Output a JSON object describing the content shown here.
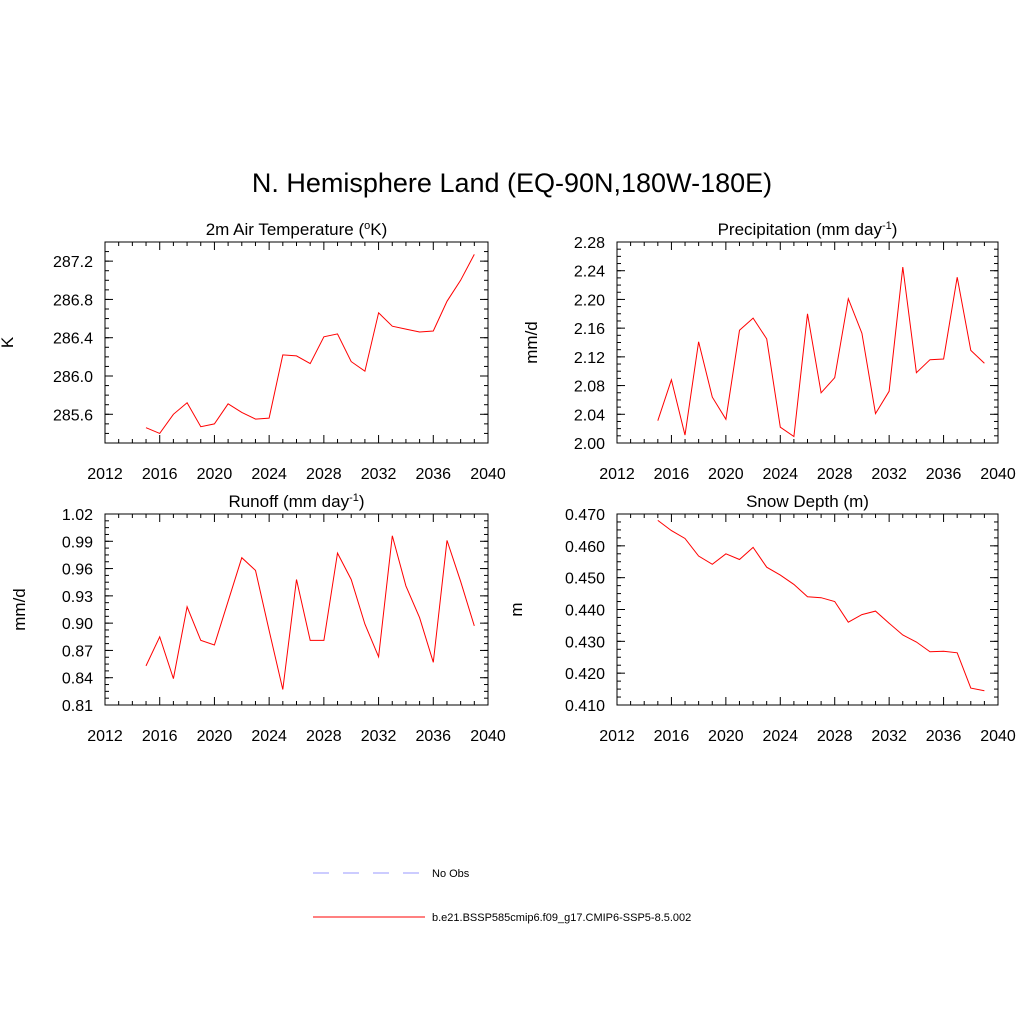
{
  "figure": {
    "title": "N. Hemisphere Land (EQ-90N,180W-180E)"
  },
  "colors": {
    "series": "#ff0000",
    "obs": "#9999ff",
    "axis": "#000000"
  },
  "chart_data": [
    {
      "type": "line",
      "title": "2m Air Temperature (",
      "title_sup": "o",
      "title_after": "K)",
      "ylabel": "K",
      "xlim": [
        2012,
        2040
      ],
      "ylim": [
        285.3,
        287.4
      ],
      "xticks": [
        2012,
        2016,
        2020,
        2024,
        2028,
        2032,
        2036,
        2040
      ],
      "xtick_labels": [
        "2012",
        "2016",
        "2020",
        "2024",
        "2028",
        "2032",
        "2036",
        "2040"
      ],
      "yticks": [
        285.6,
        286.0,
        286.4,
        286.8,
        287.2
      ],
      "ytick_labels": [
        "285.6",
        "286.0",
        "286.4",
        "286.8",
        "287.2"
      ],
      "x": [
        2015,
        2016,
        2017,
        2018,
        2019,
        2020,
        2021,
        2022,
        2023,
        2024,
        2025,
        2026,
        2027,
        2028,
        2029,
        2030,
        2031,
        2032,
        2033,
        2034,
        2035,
        2036,
        2037,
        2038,
        2039
      ],
      "series": [
        {
          "name": "b.e21.BSSP585cmip6.f09_g17.CMIP6-SSP5-8.5.002",
          "values": [
            285.46,
            285.4,
            285.6,
            285.72,
            285.47,
            285.5,
            285.71,
            285.62,
            285.55,
            285.56,
            286.22,
            286.21,
            286.13,
            286.41,
            286.44,
            286.15,
            286.05,
            286.66,
            286.52,
            286.49,
            286.46,
            286.47,
            286.78,
            287.0,
            287.27
          ]
        }
      ]
    },
    {
      "type": "line",
      "title": "Precipitation (mm day",
      "title_sup": "-1",
      "title_after": ")",
      "ylabel": "mm/d",
      "xlim": [
        2012,
        2040
      ],
      "ylim": [
        2.0,
        2.28
      ],
      "xticks": [
        2012,
        2016,
        2020,
        2024,
        2028,
        2032,
        2036,
        2040
      ],
      "xtick_labels": [
        "2012",
        "2016",
        "2020",
        "2024",
        "2028",
        "2032",
        "2036",
        "2040"
      ],
      "yticks": [
        2.0,
        2.04,
        2.08,
        2.12,
        2.16,
        2.2,
        2.24,
        2.28
      ],
      "ytick_labels": [
        "2.00",
        "2.04",
        "2.08",
        "2.12",
        "2.16",
        "2.20",
        "2.24",
        "2.28"
      ],
      "x": [
        2015,
        2016,
        2017,
        2018,
        2019,
        2020,
        2021,
        2022,
        2023,
        2024,
        2025,
        2026,
        2027,
        2028,
        2029,
        2030,
        2031,
        2032,
        2033,
        2034,
        2035,
        2036,
        2037,
        2038,
        2039
      ],
      "series": [
        {
          "name": "b.e21.BSSP585cmip6.f09_g17.CMIP6-SSP5-8.5.002",
          "values": [
            2.031,
            2.088,
            2.011,
            2.141,
            2.064,
            2.033,
            2.157,
            2.174,
            2.145,
            2.022,
            2.009,
            2.18,
            2.07,
            2.091,
            2.201,
            2.153,
            2.041,
            2.072,
            2.245,
            2.098,
            2.116,
            2.117,
            2.231,
            2.129,
            2.111
          ]
        }
      ]
    },
    {
      "type": "line",
      "title": "Runoff (mm day",
      "title_sup": "-1",
      "title_after": ")",
      "ylabel": "mm/d",
      "xlim": [
        2012,
        2040
      ],
      "ylim": [
        0.81,
        1.02
      ],
      "xticks": [
        2012,
        2016,
        2020,
        2024,
        2028,
        2032,
        2036,
        2040
      ],
      "xtick_labels": [
        "2012",
        "2016",
        "2020",
        "2024",
        "2028",
        "2032",
        "2036",
        "2040"
      ],
      "yticks": [
        0.81,
        0.84,
        0.87,
        0.9,
        0.93,
        0.96,
        0.99,
        1.02
      ],
      "ytick_labels": [
        "0.81",
        "0.84",
        "0.87",
        "0.90",
        "0.93",
        "0.96",
        "0.99",
        "1.02"
      ],
      "x": [
        2015,
        2016,
        2017,
        2018,
        2019,
        2020,
        2021,
        2022,
        2023,
        2024,
        2025,
        2026,
        2027,
        2028,
        2029,
        2030,
        2031,
        2032,
        2033,
        2034,
        2035,
        2036,
        2037,
        2038,
        2039
      ],
      "series": [
        {
          "name": "b.e21.BSSP585cmip6.f09_g17.CMIP6-SSP5-8.5.002",
          "values": [
            0.853,
            0.885,
            0.839,
            0.918,
            0.881,
            0.876,
            0.924,
            0.972,
            0.958,
            0.892,
            0.827,
            0.948,
            0.881,
            0.881,
            0.977,
            0.948,
            0.899,
            0.863,
            0.996,
            0.941,
            0.906,
            0.857,
            0.991,
            0.946,
            0.897
          ]
        }
      ]
    },
    {
      "type": "line",
      "title": "Snow Depth (m)",
      "title_sup": "",
      "title_after": "",
      "ylabel": "m",
      "xlim": [
        2012,
        2040
      ],
      "ylim": [
        0.41,
        0.47
      ],
      "xticks": [
        2012,
        2016,
        2020,
        2024,
        2028,
        2032,
        2036,
        2040
      ],
      "xtick_labels": [
        "2012",
        "2016",
        "2020",
        "2024",
        "2028",
        "2032",
        "2036",
        "2040"
      ],
      "yticks": [
        0.41,
        0.42,
        0.43,
        0.44,
        0.45,
        0.46,
        0.47
      ],
      "ytick_labels": [
        "0.410",
        "0.420",
        "0.430",
        "0.440",
        "0.450",
        "0.460",
        "0.470"
      ],
      "x": [
        2015,
        2016,
        2017,
        2018,
        2019,
        2020,
        2021,
        2022,
        2023,
        2024,
        2025,
        2026,
        2027,
        2028,
        2029,
        2030,
        2031,
        2032,
        2033,
        2034,
        2035,
        2036,
        2037,
        2038,
        2039
      ],
      "series": [
        {
          "name": "b.e21.BSSP585cmip6.f09_g17.CMIP6-SSP5-8.5.002",
          "values": [
            0.468,
            0.4648,
            0.4623,
            0.4568,
            0.4542,
            0.4575,
            0.4557,
            0.4595,
            0.4533,
            0.4508,
            0.4479,
            0.444,
            0.4437,
            0.4425,
            0.436,
            0.4384,
            0.4395,
            0.4357,
            0.432,
            0.4298,
            0.4267,
            0.4269,
            0.4264,
            0.4153,
            0.4145
          ]
        }
      ]
    }
  ],
  "legend": {
    "items": [
      {
        "label": "No Obs",
        "style": "dashed",
        "color": "#9999ff"
      },
      {
        "label": "b.e21.BSSP585cmip6.f09_g17.CMIP6-SSP5-8.5.002",
        "style": "solid",
        "color": "#ff0000"
      }
    ]
  }
}
